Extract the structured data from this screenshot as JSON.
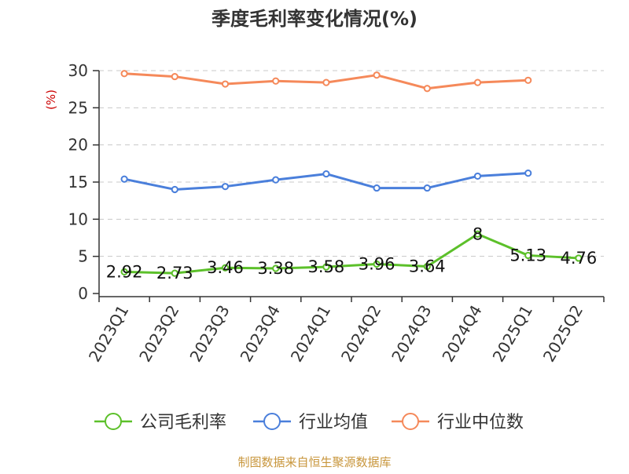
{
  "chart_data": {
    "type": "line",
    "title": "季度毛利率变化情况(%)",
    "ylabel": "(%)",
    "xlabel": "",
    "ylim": [
      0,
      30
    ],
    "yticks": [
      0,
      5,
      10,
      15,
      20,
      25,
      30
    ],
    "grid": true,
    "legend_position": "bottom",
    "categories": [
      "2023Q1",
      "2023Q2",
      "2023Q3",
      "2023Q4",
      "2024Q1",
      "2024Q2",
      "2024Q3",
      "2024Q4",
      "2025Q1",
      "2025Q2"
    ],
    "series": [
      {
        "name": "公司毛利率",
        "color": "#5cc02a",
        "values": [
          2.92,
          2.73,
          3.46,
          3.38,
          3.58,
          3.96,
          3.64,
          8,
          5.13,
          4.76
        ],
        "labels": [
          "2.92",
          "2.73",
          "3.46",
          "3.38",
          "3.58",
          "3.96",
          "3.64",
          "8",
          "5.13",
          "4.76"
        ]
      },
      {
        "name": "行业均值",
        "color": "#4a7fdb",
        "values": [
          15.4,
          14.0,
          14.4,
          15.3,
          16.1,
          14.2,
          14.2,
          15.8,
          16.2,
          null
        ]
      },
      {
        "name": "行业中位数",
        "color": "#f5895a",
        "values": [
          29.6,
          29.2,
          28.2,
          28.6,
          28.4,
          29.4,
          27.6,
          28.4,
          28.7,
          null
        ]
      }
    ],
    "source": "制图数据来自恒生聚源数据库"
  }
}
